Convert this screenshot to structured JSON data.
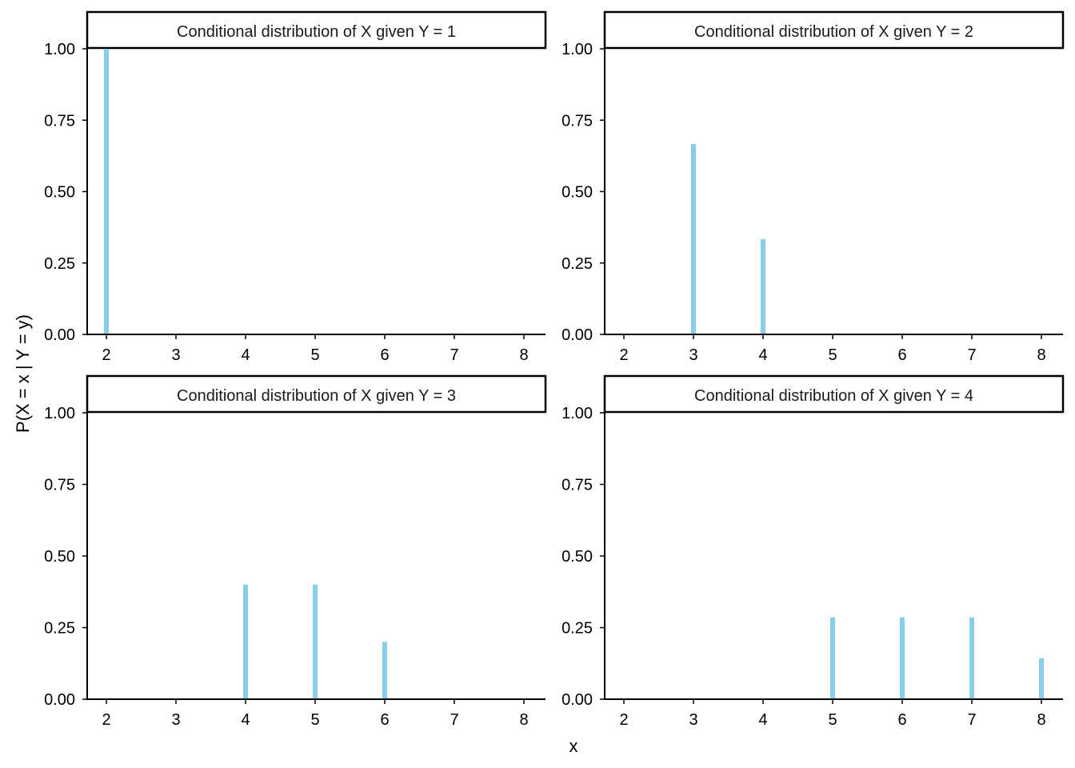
{
  "chart_data": {
    "type": "bar",
    "xlabel": "x",
    "ylabel": "P(X = x | Y = y)",
    "bar_color": "#87CEEB",
    "xlim": [
      2,
      8
    ],
    "ylim": [
      0,
      1
    ],
    "x_ticks": [
      "2",
      "3",
      "4",
      "5",
      "6",
      "7",
      "8"
    ],
    "y_ticks": [
      "0.00",
      "0.25",
      "0.50",
      "0.75",
      "1.00"
    ],
    "grid": false,
    "panels": [
      {
        "title": "Conditional distribution of X given Y = 1",
        "x": [
          2
        ],
        "values": [
          1.0
        ]
      },
      {
        "title": "Conditional distribution of X given Y = 2",
        "x": [
          3,
          4
        ],
        "values": [
          0.6667,
          0.3333
        ]
      },
      {
        "title": "Conditional distribution of X given Y = 3",
        "x": [
          4,
          5,
          6
        ],
        "values": [
          0.4,
          0.4,
          0.2
        ]
      },
      {
        "title": "Conditional distribution of X given Y = 4",
        "x": [
          5,
          6,
          7,
          8
        ],
        "values": [
          0.2857,
          0.2857,
          0.2857,
          0.1429
        ]
      }
    ]
  }
}
